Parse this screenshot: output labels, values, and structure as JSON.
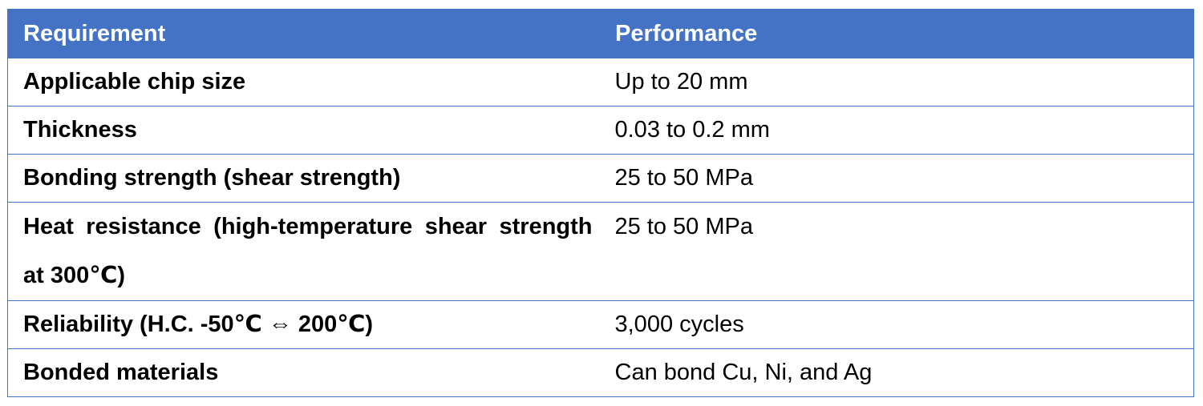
{
  "table": {
    "headers": {
      "requirement": "Requirement",
      "performance": "Performance"
    },
    "rows": [
      {
        "requirement": "Applicable chip size",
        "performance": "Up to 20 mm"
      },
      {
        "requirement": "Thickness",
        "performance": "0.03 to 0.2 mm"
      },
      {
        "requirement": "Bonding strength (shear strength)",
        "performance": "25 to 50 MPa"
      },
      {
        "requirement": "Heat resistance (high-temperature shear strength at 300℃)",
        "performance": "25 to 50 MPa"
      },
      {
        "requirement": "Reliability (H.C. -50℃ ⇔ 200℃)",
        "performance": "3,000 cycles"
      },
      {
        "requirement": "Bonded materials",
        "performance": "Can bond Cu, Ni, and Ag"
      }
    ]
  },
  "colors": {
    "header_bg": "#4472c4",
    "header_text": "#ffffff",
    "border": "#4472c4"
  }
}
